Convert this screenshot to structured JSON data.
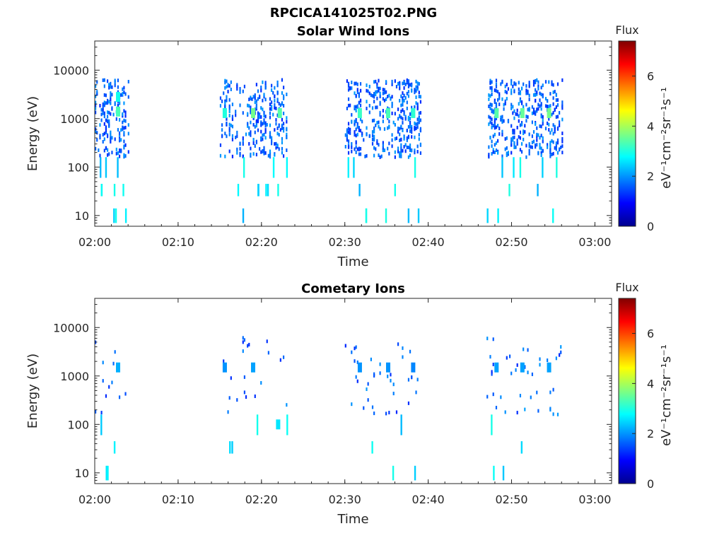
{
  "figure_title": "RPCICA141025T02.PNG",
  "chart_data": [
    {
      "type": "heatmap",
      "title": "Solar Wind Ions",
      "xlabel": "Time",
      "ylabel": "Energy (eV)",
      "y_scale": "log",
      "ylim": [
        6,
        40000
      ],
      "xlim": [
        "02:00",
        "03:02"
      ],
      "x_ticks": [
        "02:00",
        "02:10",
        "02:20",
        "02:30",
        "02:40",
        "02:50",
        "03:00"
      ],
      "y_ticks": [
        "10",
        "100",
        "1000",
        "10000"
      ],
      "colorbar": {
        "label": "Flux",
        "unit_label": "eV⁻¹cm⁻²sr⁻¹s⁻¹",
        "ticks": [
          "0",
          "2",
          "4",
          "6"
        ],
        "range": [
          0,
          7.4
        ],
        "colormap": "jet"
      },
      "bursts": [
        {
          "start": "02:00",
          "end": "02:04",
          "peaks": [
            {
              "time": "02:02.8",
              "energy_eV": 1400,
              "flux": 3.3
            },
            {
              "time": "02:02.8",
              "energy_eV": 2800,
              "flux": 2.9
            }
          ]
        },
        {
          "start": "02:15",
          "end": "02:23",
          "peaks": [
            {
              "time": "02:15.6",
              "energy_eV": 1300,
              "flux": 3.0
            },
            {
              "time": "02:19.0",
              "energy_eV": 1300,
              "flux": 3.6
            },
            {
              "time": "02:22.2",
              "energy_eV": 1300,
              "flux": 3.4
            }
          ]
        },
        {
          "start": "02:30",
          "end": "02:39",
          "peaks": [
            {
              "time": "02:31.8",
              "energy_eV": 1300,
              "flux": 3.2
            },
            {
              "time": "02:35.2",
              "energy_eV": 1300,
              "flux": 3.3
            },
            {
              "time": "02:38.2",
              "energy_eV": 1300,
              "flux": 3.1
            }
          ]
        },
        {
          "start": "02:47",
          "end": "02:56",
          "peaks": [
            {
              "time": "02:48.2",
              "energy_eV": 1300,
              "flux": 3.4
            },
            {
              "time": "02:51.3",
              "energy_eV": 1300,
              "flux": 3.5
            },
            {
              "time": "02:54.5",
              "energy_eV": 1300,
              "flux": 3.6
            }
          ]
        }
      ]
    },
    {
      "type": "heatmap",
      "title": "Cometary Ions",
      "xlabel": "Time",
      "ylabel": "Energy (eV)",
      "y_scale": "log",
      "ylim": [
        6,
        40000
      ],
      "xlim": [
        "02:00",
        "03:02"
      ],
      "x_ticks": [
        "02:00",
        "02:10",
        "02:20",
        "02:30",
        "02:40",
        "02:50",
        "03:00"
      ],
      "y_ticks": [
        "10",
        "100",
        "1000",
        "10000"
      ],
      "colorbar": {
        "label": "Flux",
        "unit_label": "eV⁻¹cm⁻²sr⁻¹s⁻¹",
        "ticks": [
          "0",
          "2",
          "4",
          "6"
        ],
        "range": [
          0,
          7.4
        ],
        "colormap": "jet"
      },
      "bursts": [
        {
          "start": "02:00",
          "end": "02:04",
          "peaks": [
            {
              "time": "02:02.8",
              "energy_eV": 1500,
              "flux": 2.2
            }
          ]
        },
        {
          "start": "02:15",
          "end": "02:23",
          "peaks": [
            {
              "time": "02:15.6",
              "energy_eV": 1500,
              "flux": 2.0
            },
            {
              "time": "02:19.0",
              "energy_eV": 1500,
              "flux": 2.1
            },
            {
              "time": "02:22.0",
              "energy_eV": 100,
              "flux": 2.6
            }
          ]
        },
        {
          "start": "02:30",
          "end": "02:39",
          "peaks": [
            {
              "time": "02:31.8",
              "energy_eV": 1500,
              "flux": 2.0
            },
            {
              "time": "02:35.2",
              "energy_eV": 1500,
              "flux": 2.0
            },
            {
              "time": "02:38.2",
              "energy_eV": 1500,
              "flux": 1.9
            }
          ]
        },
        {
          "start": "02:47",
          "end": "02:56",
          "peaks": [
            {
              "time": "02:48.2",
              "energy_eV": 1500,
              "flux": 2.1
            },
            {
              "time": "02:51.3",
              "energy_eV": 1500,
              "flux": 2.1
            },
            {
              "time": "02:54.5",
              "energy_eV": 1500,
              "flux": 2.1
            }
          ]
        }
      ]
    }
  ]
}
